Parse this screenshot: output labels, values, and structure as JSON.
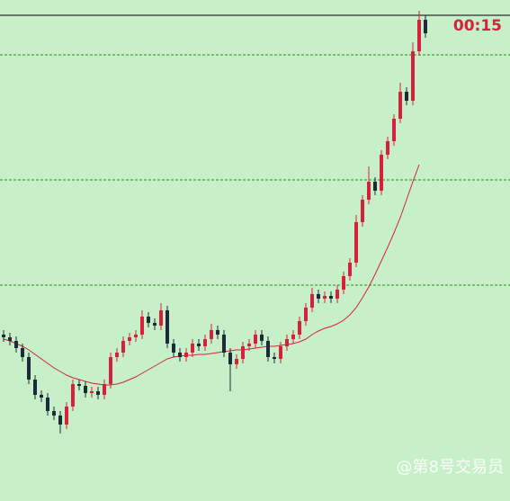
{
  "chart_data": {
    "type": "candlestick",
    "countdown": "00:15",
    "watermark": "@第8号交易员",
    "up_color": "#d6213c",
    "down_color": "#1c2a3a",
    "ma_color": "#d6213c",
    "grid_color": "#2a8a2a",
    "ylim": [
      0,
      540
    ],
    "yticks": [
      240,
      357,
      496
    ],
    "grid": true,
    "open": [
      185,
      182,
      178,
      170,
      160,
      135,
      118,
      115,
      100,
      95,
      85,
      105,
      130,
      128,
      120,
      122,
      118,
      130,
      160,
      165,
      178,
      182,
      185,
      205,
      198,
      195,
      212,
      175,
      165,
      160,
      165,
      175,
      172,
      180,
      190,
      185,
      165,
      152,
      158,
      172,
      175,
      185,
      178,
      160,
      158,
      172,
      180,
      185,
      200,
      215,
      230,
      225,
      228,
      225,
      235,
      250,
      265,
      310,
      335,
      355,
      345,
      385,
      400,
      425,
      455,
      445,
      500,
      535
    ],
    "high": [
      190,
      187,
      183,
      175,
      165,
      140,
      123,
      120,
      105,
      100,
      110,
      135,
      135,
      133,
      127,
      127,
      135,
      165,
      170,
      183,
      187,
      190,
      212,
      210,
      203,
      220,
      217,
      180,
      170,
      170,
      180,
      180,
      185,
      197,
      195,
      190,
      170,
      163,
      177,
      180,
      190,
      190,
      183,
      165,
      177,
      185,
      190,
      205,
      220,
      237,
      235,
      233,
      233,
      240,
      255,
      270,
      318,
      340,
      372,
      360,
      390,
      405,
      430,
      465,
      460,
      510,
      545,
      540
    ],
    "low": [
      177,
      173,
      165,
      155,
      130,
      113,
      110,
      95,
      90,
      75,
      80,
      100,
      123,
      115,
      115,
      113,
      113,
      125,
      155,
      160,
      173,
      177,
      180,
      193,
      190,
      190,
      170,
      160,
      155,
      155,
      160,
      167,
      167,
      175,
      180,
      160,
      122,
      147,
      153,
      167,
      170,
      173,
      155,
      153,
      153,
      167,
      175,
      180,
      195,
      210,
      220,
      220,
      220,
      220,
      230,
      245,
      260,
      305,
      330,
      340,
      340,
      380,
      395,
      420,
      440,
      440,
      495,
      515
    ],
    "close": [
      182,
      178,
      170,
      160,
      135,
      118,
      115,
      100,
      95,
      85,
      105,
      130,
      128,
      120,
      122,
      118,
      130,
      160,
      165,
      178,
      182,
      185,
      205,
      198,
      195,
      212,
      175,
      165,
      160,
      165,
      175,
      172,
      180,
      190,
      185,
      165,
      152,
      158,
      172,
      175,
      185,
      178,
      160,
      158,
      172,
      180,
      185,
      200,
      215,
      230,
      225,
      228,
      225,
      235,
      250,
      265,
      310,
      335,
      355,
      345,
      385,
      400,
      425,
      455,
      445,
      500,
      535,
      520
    ],
    "ma": [
      180,
      178,
      175,
      172,
      168,
      163,
      158,
      153,
      148,
      144,
      140,
      137,
      135,
      133,
      131,
      130,
      129,
      129,
      130,
      132,
      135,
      138,
      142,
      146,
      150,
      154,
      158,
      160,
      161,
      162,
      162,
      163,
      163,
      164,
      165,
      166,
      167,
      168,
      168,
      169,
      170,
      171,
      172,
      172,
      173,
      174,
      175,
      177,
      180,
      185,
      189,
      192,
      194,
      197,
      201,
      207,
      215,
      226,
      238,
      252,
      267,
      282,
      298,
      315,
      335,
      355,
      374,
      null
    ]
  }
}
